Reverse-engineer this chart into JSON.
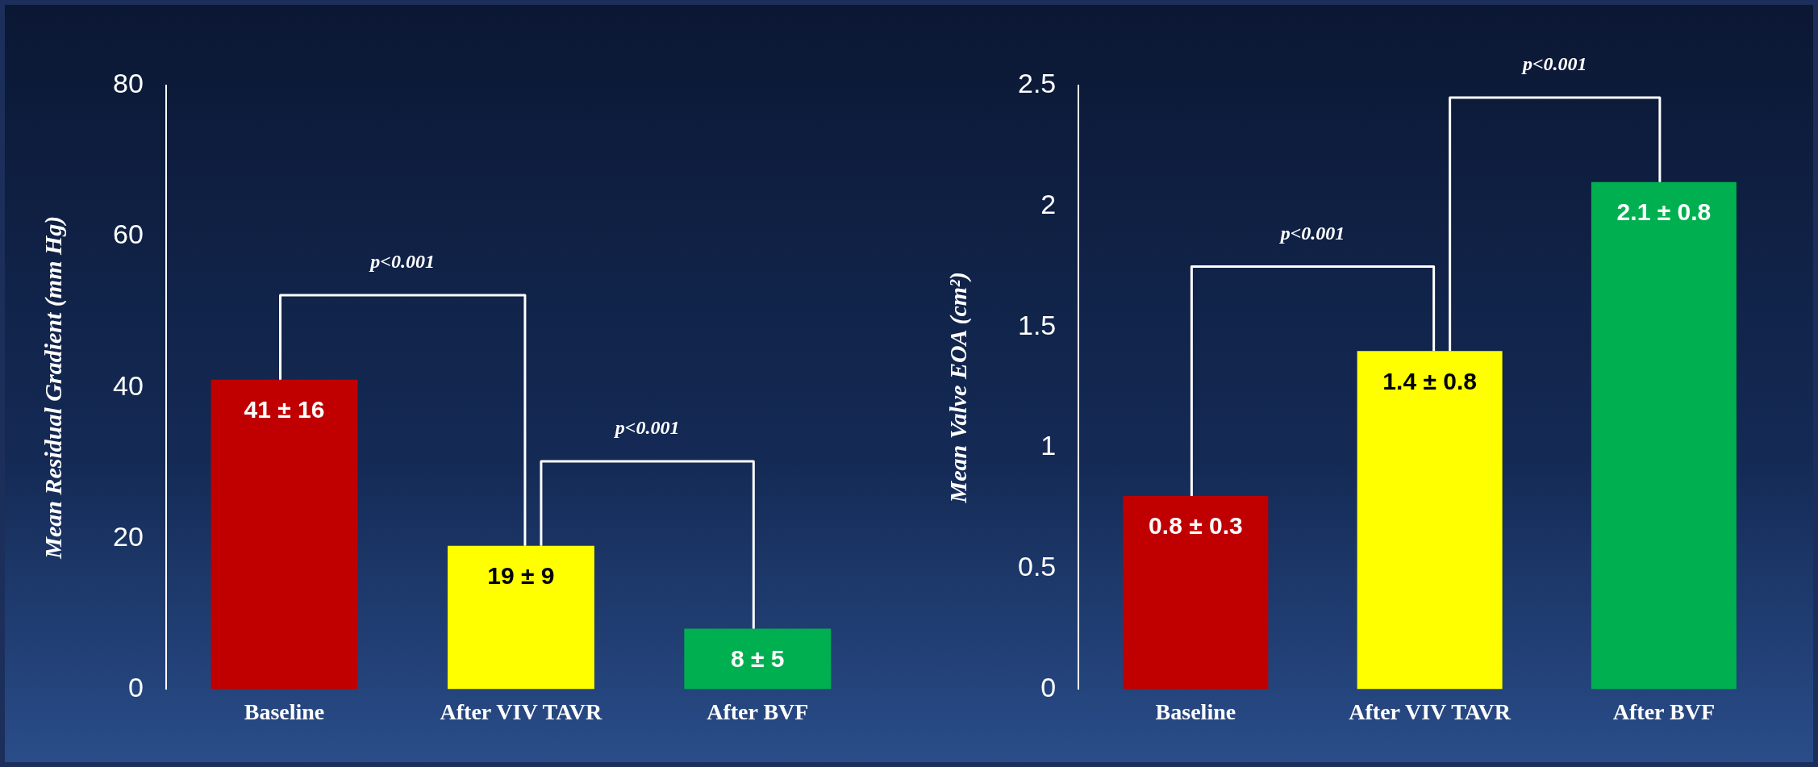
{
  "chart_data": [
    {
      "type": "bar",
      "ylabel": "Mean Residual Gradient (mm Hg)",
      "categories": [
        "Baseline",
        "After VIV TAVR",
        "After BVF"
      ],
      "values": [
        41,
        19,
        8
      ],
      "colors": [
        "#c00000",
        "#ffff00",
        "#00b050"
      ],
      "value_labels": [
        "41 ± 16",
        "19 ± 9",
        "8 ± 5"
      ],
      "ylim": [
        0,
        80
      ],
      "yticks": [
        0,
        20,
        40,
        60,
        80
      ],
      "grid": false,
      "legend": false,
      "annotations": [
        "p<0.001",
        "p<0.001"
      ]
    },
    {
      "type": "bar",
      "ylabel": "Mean Valve EOA (cm²)",
      "categories": [
        "Baseline",
        "After VIV TAVR",
        "After BVF"
      ],
      "values": [
        0.8,
        1.4,
        2.1
      ],
      "colors": [
        "#c00000",
        "#ffff00",
        "#00b050"
      ],
      "value_labels": [
        "0.8 ± 0.3",
        "1.4 ± 0.8",
        "2.1 ± 0.8"
      ],
      "ylim": [
        0,
        2.5
      ],
      "yticks": [
        0,
        0.5,
        1,
        1.5,
        2,
        2.5
      ],
      "grid": false,
      "legend": false,
      "annotations": [
        "p<0.001",
        "p<0.001"
      ]
    }
  ]
}
